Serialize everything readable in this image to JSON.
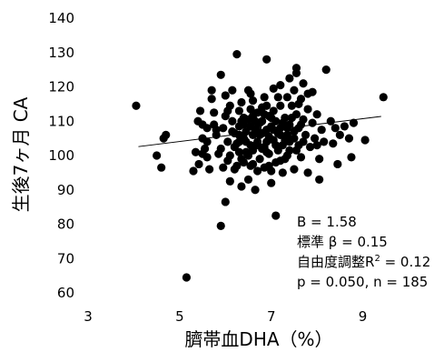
{
  "chart_data": {
    "type": "scatter",
    "title": "",
    "xlabel": "臍帯血DHA（%）",
    "ylabel": "生後7ヶ月 CA",
    "xlim": [
      3,
      10
    ],
    "ylim": [
      60,
      140
    ],
    "xticks": [
      "3",
      "5",
      "7",
      "9"
    ],
    "yticks": [
      "60",
      "70",
      "80",
      "90",
      "100",
      "110",
      "120",
      "130",
      "140"
    ],
    "grid": false,
    "trendline": {
      "x": [
        4.1,
        9.4
      ],
      "y": [
        102.6,
        111.4
      ]
    },
    "annotations": {
      "b": "B = 1.58",
      "beta": "標準 β = 0.15",
      "r2_prefix": "自由度調整R",
      "r2_sup": "2",
      "r2_suffix": " = 0.12",
      "pn": "p = 0.050, n = 185"
    },
    "points": [
      [
        4.05,
        114.5
      ],
      [
        4.5,
        100
      ],
      [
        4.6,
        96.5
      ],
      [
        4.65,
        105
      ],
      [
        4.7,
        106
      ],
      [
        5.15,
        64.5
      ],
      [
        5.3,
        95.5
      ],
      [
        5.35,
        101
      ],
      [
        5.4,
        110
      ],
      [
        5.42,
        97.5
      ],
      [
        5.45,
        113
      ],
      [
        5.5,
        105
      ],
      [
        5.5,
        109
      ],
      [
        5.55,
        102
      ],
      [
        5.6,
        108
      ],
      [
        5.6,
        99.5
      ],
      [
        5.65,
        96
      ],
      [
        5.7,
        116.5
      ],
      [
        5.7,
        119
      ],
      [
        5.75,
        112.5
      ],
      [
        5.8,
        106
      ],
      [
        5.85,
        100.5
      ],
      [
        5.9,
        123.5
      ],
      [
        5.9,
        79.5
      ],
      [
        5.95,
        96.5
      ],
      [
        5.95,
        108
      ],
      [
        6.0,
        86.5
      ],
      [
        6.0,
        117.5
      ],
      [
        6.05,
        104
      ],
      [
        6.05,
        98.5
      ],
      [
        6.1,
        92.5
      ],
      [
        6.1,
        114.5
      ],
      [
        6.15,
        119
      ],
      [
        6.15,
        110
      ],
      [
        6.2,
        106.5
      ],
      [
        6.2,
        102.5
      ],
      [
        6.25,
        97
      ],
      [
        6.25,
        129.5
      ],
      [
        6.3,
        104
      ],
      [
        6.3,
        113
      ],
      [
        6.3,
        108.5
      ],
      [
        6.35,
        99
      ],
      [
        6.35,
        91
      ],
      [
        6.35,
        115.5
      ],
      [
        6.4,
        105
      ],
      [
        6.4,
        111
      ],
      [
        6.45,
        101
      ],
      [
        6.45,
        107
      ],
      [
        6.5,
        119
      ],
      [
        6.5,
        110.5
      ],
      [
        6.5,
        93
      ],
      [
        6.55,
        103
      ],
      [
        6.55,
        113.5
      ],
      [
        6.55,
        97
      ],
      [
        6.6,
        106
      ],
      [
        6.6,
        101.5
      ],
      [
        6.6,
        116
      ],
      [
        6.65,
        90
      ],
      [
        6.65,
        110
      ],
      [
        6.7,
        108
      ],
      [
        6.7,
        104
      ],
      [
        6.7,
        112.5
      ],
      [
        6.75,
        99
      ],
      [
        6.75,
        106
      ],
      [
        6.8,
        114
      ],
      [
        6.8,
        102
      ],
      [
        6.8,
        110
      ],
      [
        6.85,
        117
      ],
      [
        6.85,
        96.5
      ],
      [
        6.9,
        107.5
      ],
      [
        6.9,
        128
      ],
      [
        6.9,
        104
      ],
      [
        6.95,
        111.5
      ],
      [
        6.95,
        100.5
      ],
      [
        7.0,
        108.5
      ],
      [
        7.0,
        92
      ],
      [
        7.0,
        95.5
      ],
      [
        7.05,
        119.5
      ],
      [
        7.05,
        104.5
      ],
      [
        7.05,
        113
      ],
      [
        7.1,
        110
      ],
      [
        7.1,
        82.5
      ],
      [
        7.1,
        98
      ],
      [
        7.15,
        106.5
      ],
      [
        7.15,
        101.5
      ],
      [
        7.2,
        120.5
      ],
      [
        7.2,
        114.5
      ],
      [
        7.2,
        108
      ],
      [
        7.25,
        103
      ],
      [
        7.25,
        95
      ],
      [
        7.3,
        111
      ],
      [
        7.3,
        99
      ],
      [
        7.35,
        117
      ],
      [
        7.35,
        106
      ],
      [
        7.4,
        122.5
      ],
      [
        7.4,
        109
      ],
      [
        7.4,
        101.5
      ],
      [
        7.45,
        114.5
      ],
      [
        7.5,
        96
      ],
      [
        7.5,
        119
      ],
      [
        7.5,
        105
      ],
      [
        7.55,
        112
      ],
      [
        7.55,
        124
      ],
      [
        7.55,
        125.5
      ],
      [
        7.6,
        103
      ],
      [
        7.6,
        108
      ],
      [
        7.65,
        116.5
      ],
      [
        7.65,
        99.5
      ],
      [
        7.7,
        121
      ],
      [
        7.7,
        110.5
      ],
      [
        7.75,
        106
      ],
      [
        7.8,
        113.5
      ],
      [
        7.8,
        95
      ],
      [
        7.85,
        102.5
      ],
      [
        7.9,
        118.5
      ],
      [
        7.9,
        109.5
      ],
      [
        7.95,
        105
      ],
      [
        8.0,
        112
      ],
      [
        8.05,
        99
      ],
      [
        8.05,
        93
      ],
      [
        8.1,
        107.5
      ],
      [
        8.15,
        104
      ],
      [
        8.2,
        125
      ],
      [
        8.3,
        110
      ],
      [
        8.35,
        103.5
      ],
      [
        8.4,
        108
      ],
      [
        8.45,
        97.5
      ],
      [
        8.5,
        106
      ],
      [
        8.6,
        108.5
      ],
      [
        8.7,
        105
      ],
      [
        8.75,
        99.5
      ],
      [
        8.8,
        109.5
      ],
      [
        9.05,
        104.5
      ],
      [
        9.45,
        117
      ],
      [
        5.6,
        104
      ],
      [
        6.1,
        100
      ],
      [
        6.4,
        109
      ],
      [
        6.7,
        103
      ],
      [
        6.95,
        97
      ],
      [
        7.2,
        106
      ],
      [
        7.45,
        111
      ],
      [
        7.7,
        104
      ],
      [
        6.0,
        111.5
      ],
      [
        6.3,
        106
      ],
      [
        6.55,
        118
      ],
      [
        6.85,
        112
      ],
      [
        7.15,
        117
      ],
      [
        7.35,
        100
      ],
      [
        7.6,
        115
      ],
      [
        5.8,
        107.5
      ],
      [
        6.05,
        113
      ],
      [
        6.35,
        110
      ],
      [
        6.65,
        107
      ],
      [
        6.9,
        101
      ],
      [
        7.25,
        109.5
      ],
      [
        7.5,
        107
      ],
      [
        6.2,
        96
      ],
      [
        6.5,
        100
      ],
      [
        6.8,
        106.5
      ],
      [
        7.0,
        111
      ],
      [
        7.3,
        104.5
      ],
      [
        6.45,
        104
      ],
      [
        6.75,
        109.5
      ],
      [
        7.05,
        107.5
      ],
      [
        6.15,
        107
      ],
      [
        6.6,
        111.5
      ],
      [
        6.95,
        105.5
      ],
      [
        7.4,
        104
      ],
      [
        5.5,
        100.5
      ],
      [
        5.9,
        102
      ],
      [
        6.25,
        103.5
      ],
      [
        6.55,
        108.5
      ],
      [
        6.85,
        102.5
      ],
      [
        7.1,
        103
      ],
      [
        7.35,
        108
      ],
      [
        7.65,
        109
      ],
      [
        7.8,
        118
      ],
      [
        8.0,
        103
      ],
      [
        6.7,
        95.5
      ],
      [
        6.4,
        98
      ],
      [
        7.2,
        98.5
      ],
      [
        5.75,
        109
      ],
      [
        6.3,
        101
      ],
      [
        7.55,
        101.5
      ],
      [
        6.9,
        114.5
      ],
      [
        6.6,
        97.5
      ]
    ]
  }
}
